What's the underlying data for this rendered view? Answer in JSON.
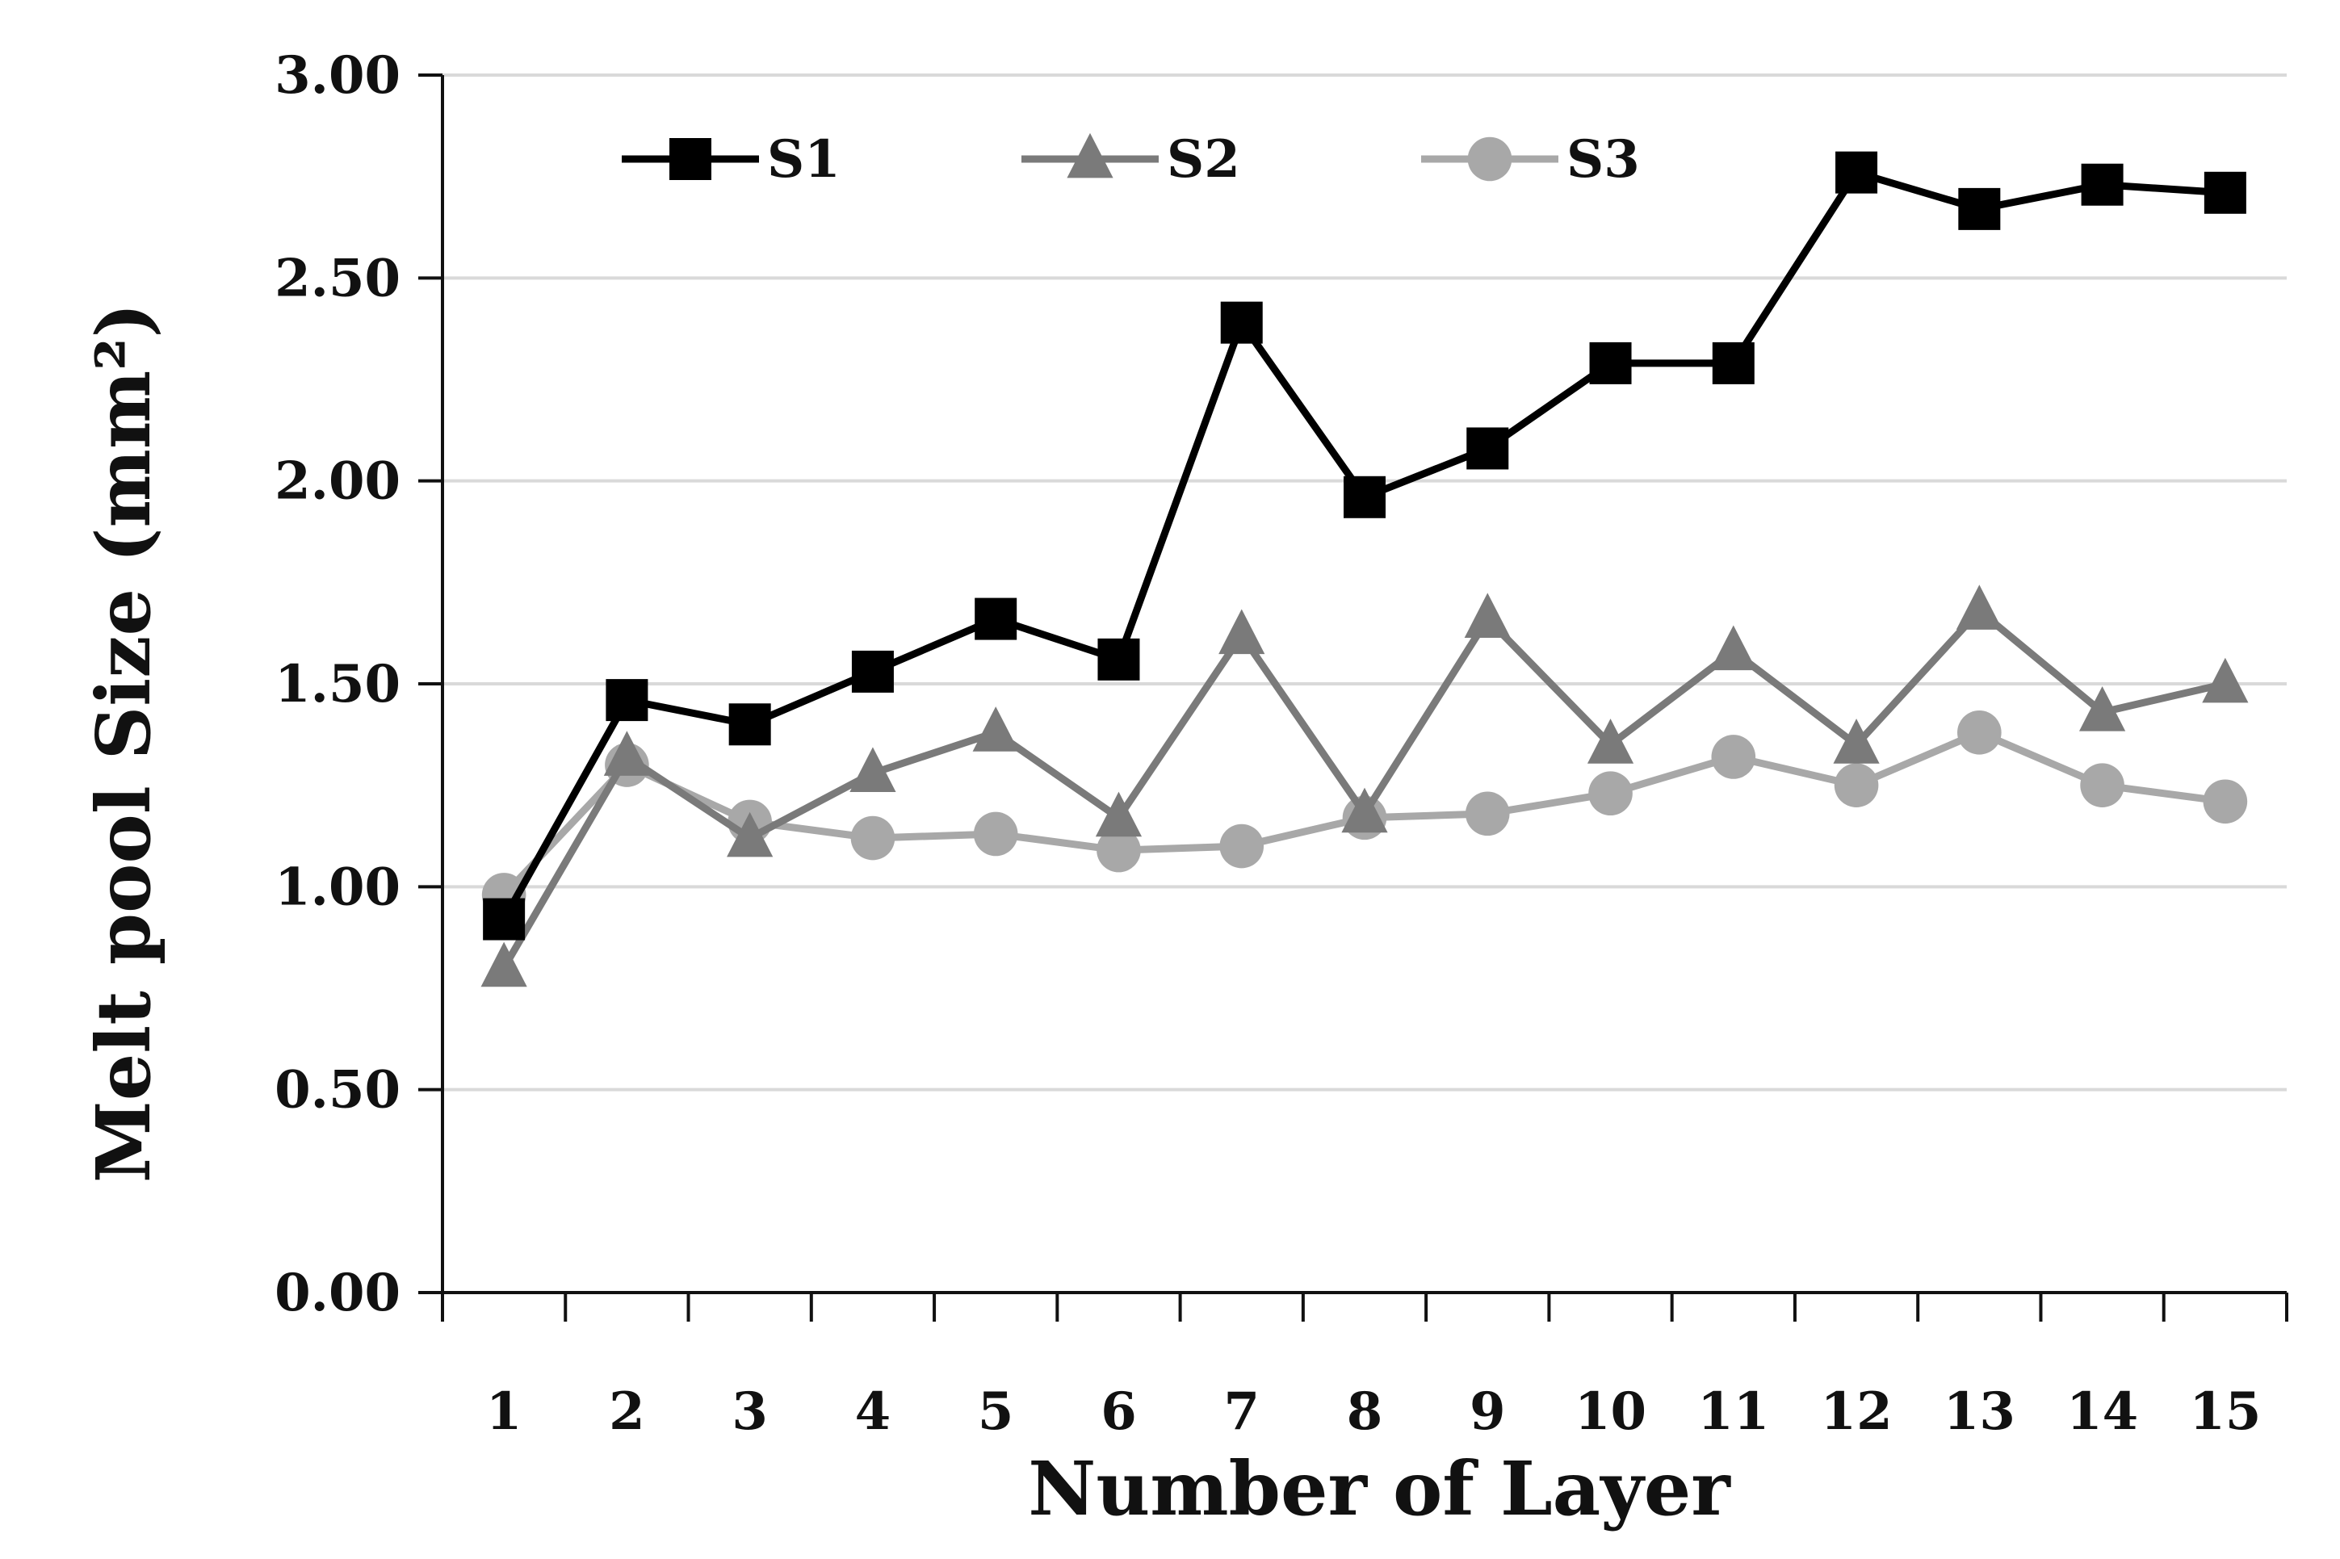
{
  "chart_data": {
    "type": "line",
    "title": "",
    "xlabel": "Number of Layer",
    "ylabel": "Melt pool Size (mm²)",
    "categories": [
      "1",
      "2",
      "3",
      "4",
      "5",
      "6",
      "7",
      "8",
      "9",
      "10",
      "11",
      "12",
      "13",
      "14",
      "15"
    ],
    "ylim": [
      0,
      3
    ],
    "yticks": [
      "0.00",
      "0.50",
      "1.00",
      "1.50",
      "2.00",
      "2.50",
      "3.00"
    ],
    "grid": "horizontal",
    "legend_position": "top",
    "series": [
      {
        "name": "S1",
        "marker": "square",
        "color": "#000000",
        "values": [
          0.92,
          1.46,
          1.4,
          1.53,
          1.66,
          1.56,
          2.39,
          1.96,
          2.08,
          2.29,
          2.29,
          2.76,
          2.67,
          2.73,
          2.71
        ]
      },
      {
        "name": "S2",
        "marker": "triangle",
        "color": "#7a7a7a",
        "values": [
          0.8,
          1.32,
          1.12,
          1.28,
          1.38,
          1.17,
          1.62,
          1.18,
          1.66,
          1.35,
          1.58,
          1.35,
          1.68,
          1.43,
          1.5
        ]
      },
      {
        "name": "S3",
        "marker": "circle",
        "color": "#a8a8a8",
        "values": [
          0.98,
          1.3,
          1.16,
          1.12,
          1.13,
          1.09,
          1.1,
          1.17,
          1.18,
          1.23,
          1.32,
          1.25,
          1.38,
          1.25,
          1.21
        ]
      }
    ]
  }
}
